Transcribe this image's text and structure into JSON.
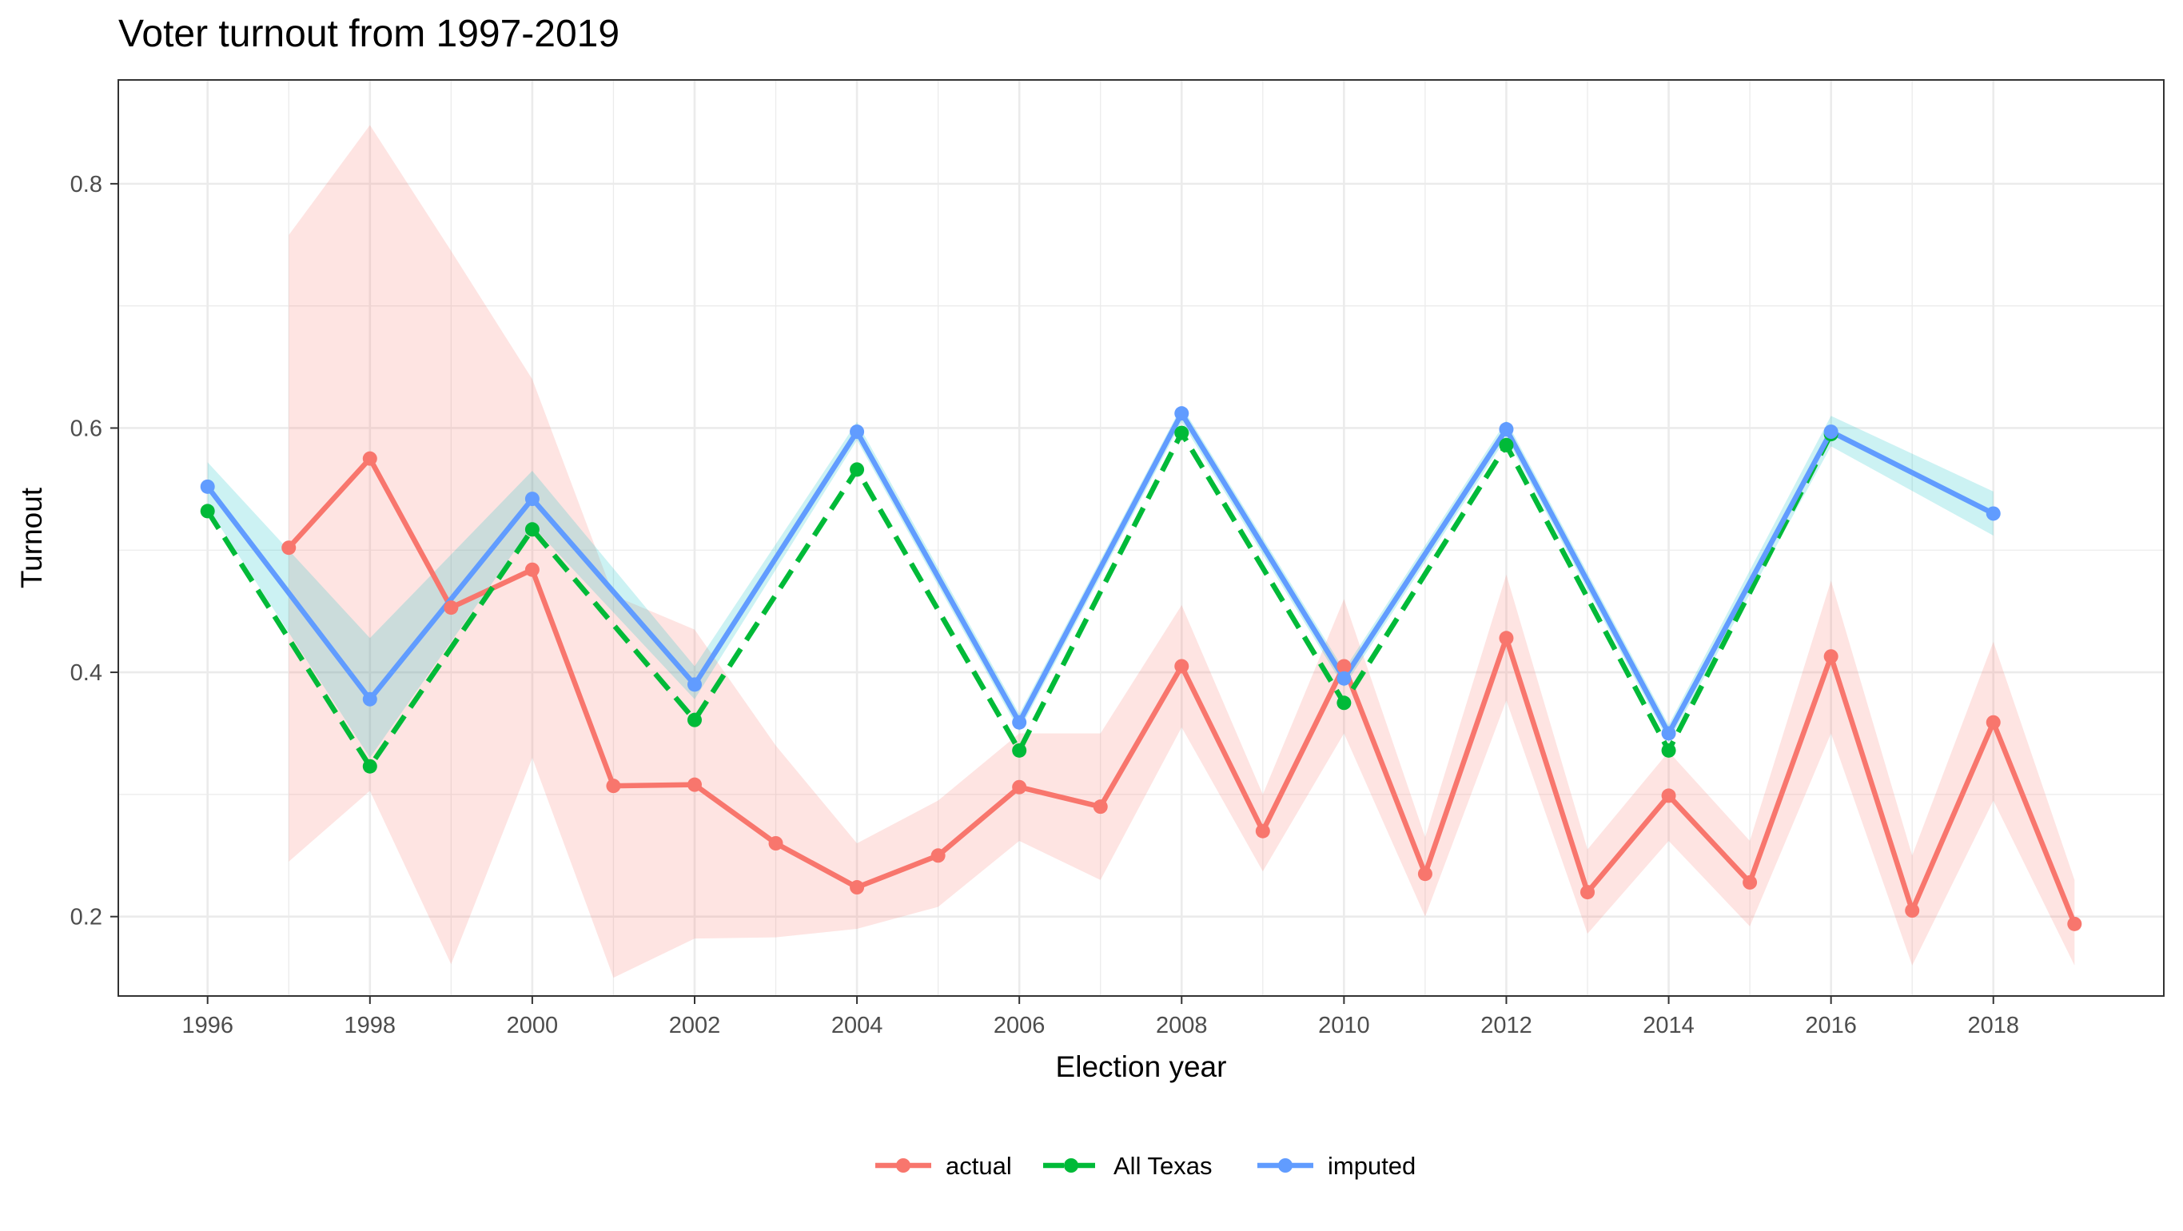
{
  "chart_data": {
    "type": "line",
    "title": "Voter turnout from 1997-2019",
    "xlabel": "Election year",
    "ylabel": "Turnout",
    "xlim": [
      1994.9,
      2020.1
    ],
    "ylim": [
      0.135,
      0.885
    ],
    "x_ticks": [
      1996,
      1998,
      2000,
      2002,
      2004,
      2006,
      2008,
      2010,
      2012,
      2014,
      2016,
      2018
    ],
    "y_ticks": [
      0.2,
      0.4,
      0.6,
      0.8
    ],
    "y_tick_labels": [
      "0.2",
      "0.4",
      "0.6",
      "0.8"
    ],
    "grid": true,
    "legend_position": "bottom",
    "series": [
      {
        "name": "actual",
        "color": "#F8766D",
        "band_color": "#F8766D",
        "dashed": false,
        "x": [
          1997,
          1998,
          1999,
          2000,
          2001,
          2002,
          2003,
          2004,
          2005,
          2006,
          2007,
          2008,
          2009,
          2010,
          2011,
          2012,
          2013,
          2014,
          2015,
          2016,
          2017,
          2018,
          2019
        ],
        "y": [
          0.502,
          0.575,
          0.453,
          0.484,
          0.307,
          0.308,
          0.26,
          0.224,
          0.25,
          0.306,
          0.29,
          0.405,
          0.27,
          0.405,
          0.235,
          0.428,
          0.22,
          0.299,
          0.228,
          0.413,
          0.205,
          0.359,
          0.194
        ],
        "lower": [
          0.245,
          0.303,
          0.161,
          0.33,
          0.15,
          0.182,
          0.183,
          0.19,
          0.208,
          0.262,
          0.23,
          0.355,
          0.237,
          0.35,
          0.2,
          0.377,
          0.186,
          0.262,
          0.192,
          0.35,
          0.16,
          0.295,
          0.16
        ],
        "upper": [
          0.758,
          0.848,
          0.745,
          0.64,
          0.463,
          0.435,
          0.34,
          0.26,
          0.295,
          0.35,
          0.35,
          0.455,
          0.3,
          0.46,
          0.265,
          0.48,
          0.255,
          0.335,
          0.262,
          0.475,
          0.25,
          0.425,
          0.23
        ]
      },
      {
        "name": "All Texas",
        "color": "#00BA38",
        "dashed": true,
        "x": [
          1996,
          1998,
          2000,
          2002,
          2004,
          2006,
          2008,
          2010,
          2012,
          2014,
          2016
        ],
        "y": [
          0.532,
          0.323,
          0.517,
          0.361,
          0.566,
          0.336,
          0.596,
          0.375,
          0.586,
          0.336,
          0.595
        ]
      },
      {
        "name": "imputed",
        "color": "#619CFF",
        "band_color": "#00BFC4",
        "dashed": false,
        "x": [
          1996,
          1998,
          2000,
          2002,
          2004,
          2006,
          2008,
          2010,
          2012,
          2014,
          2016,
          2018
        ],
        "y": [
          0.552,
          0.378,
          0.542,
          0.39,
          0.597,
          0.359,
          0.612,
          0.395,
          0.599,
          0.35,
          0.597,
          0.53
        ],
        "lower": [
          0.535,
          0.33,
          0.52,
          0.378,
          0.59,
          0.352,
          0.605,
          0.388,
          0.592,
          0.343,
          0.585,
          0.512
        ],
        "upper": [
          0.572,
          0.428,
          0.565,
          0.405,
          0.605,
          0.366,
          0.618,
          0.402,
          0.606,
          0.357,
          0.61,
          0.548
        ]
      }
    ]
  }
}
